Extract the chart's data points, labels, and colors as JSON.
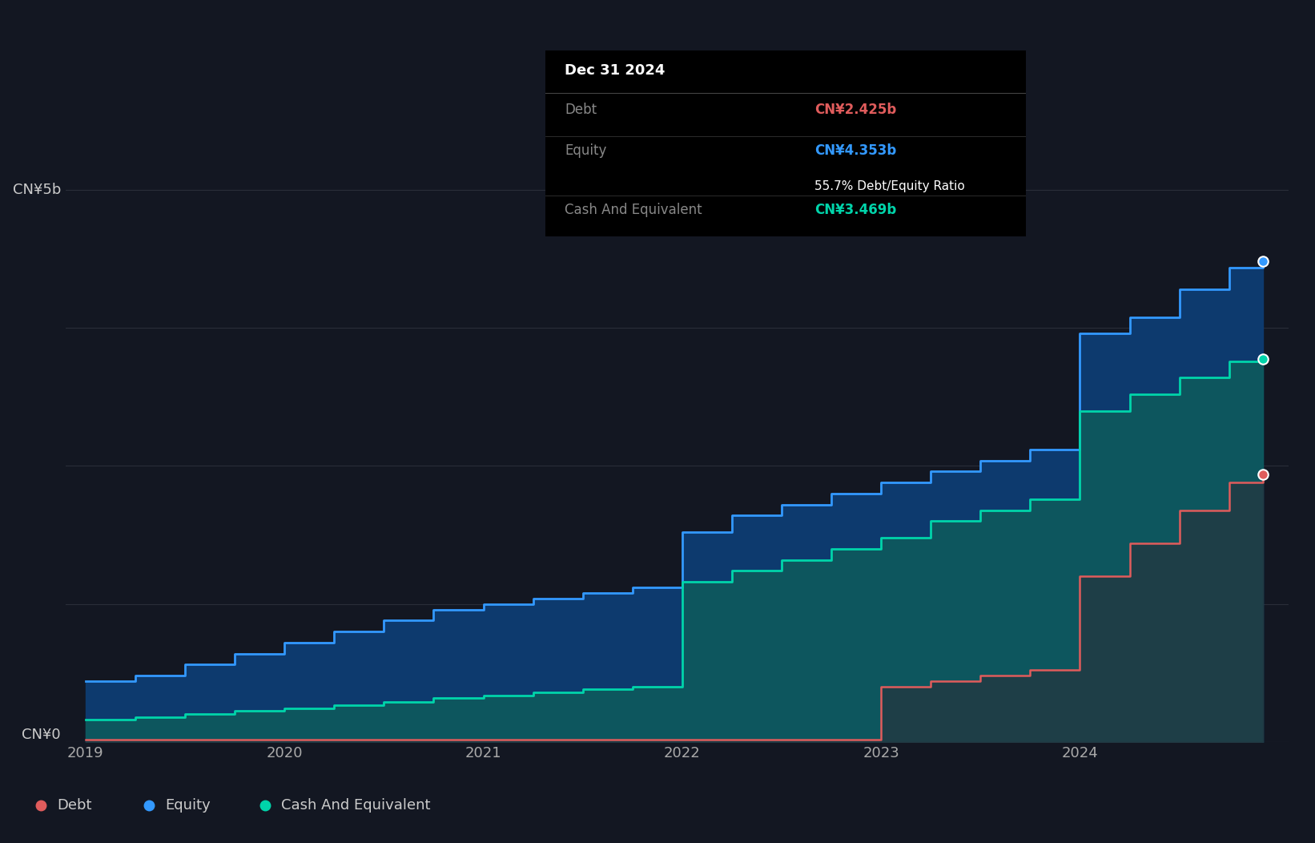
{
  "background_color": "#131722",
  "plot_bg_color": "#131722",
  "grid_color": "#2a2e39",
  "tooltip_bg": "#000000",
  "y_label_5b": "CN¥5b",
  "y_label_0": "CN¥0",
  "y_max": 5.5,
  "x_ticks": [
    2019,
    2020,
    2021,
    2022,
    2023,
    2024
  ],
  "tooltip_title": "Dec 31 2024",
  "tooltip_debt_label": "Debt",
  "tooltip_debt_value": "CN¥2.425b",
  "tooltip_equity_label": "Equity",
  "tooltip_equity_value": "CN¥4.353b",
  "tooltip_ratio": "55.7% Debt/Equity Ratio",
  "tooltip_cash_label": "Cash And Equivalent",
  "tooltip_cash_value": "CN¥3.469b",
  "debt_color": "#e05c5c",
  "equity_color": "#3399ff",
  "cash_color": "#00d4aa",
  "equity_fill_color": "#0d3a6e",
  "cash_fill_color": "#0d5c5c",
  "debt_fill_color": "#2a2e39",
  "legend_labels": [
    "Debt",
    "Equity",
    "Cash And Equivalent"
  ],
  "dates": [
    2019.0,
    2019.25,
    2019.5,
    2019.75,
    2020.0,
    2020.25,
    2020.5,
    2020.75,
    2021.0,
    2021.25,
    2021.5,
    2021.75,
    2022.0,
    2022.25,
    2022.5,
    2022.75,
    2023.0,
    2023.25,
    2023.5,
    2023.75,
    2024.0,
    2024.25,
    2024.5,
    2024.75,
    2024.92
  ],
  "equity": [
    0.55,
    0.6,
    0.7,
    0.8,
    0.9,
    1.0,
    1.1,
    1.2,
    1.25,
    1.3,
    1.35,
    1.4,
    1.9,
    2.05,
    2.15,
    2.25,
    2.35,
    2.45,
    2.55,
    2.65,
    3.7,
    3.85,
    4.1,
    4.3,
    4.353
  ],
  "cash": [
    0.2,
    0.22,
    0.25,
    0.28,
    0.3,
    0.33,
    0.36,
    0.4,
    0.42,
    0.45,
    0.48,
    0.5,
    1.45,
    1.55,
    1.65,
    1.75,
    1.85,
    2.0,
    2.1,
    2.2,
    3.0,
    3.15,
    3.3,
    3.45,
    3.469
  ],
  "debt": [
    0.02,
    0.02,
    0.02,
    0.02,
    0.02,
    0.02,
    0.02,
    0.02,
    0.02,
    0.02,
    0.02,
    0.02,
    0.02,
    0.02,
    0.02,
    0.02,
    0.5,
    0.55,
    0.6,
    0.65,
    1.5,
    1.8,
    2.1,
    2.35,
    2.425
  ]
}
